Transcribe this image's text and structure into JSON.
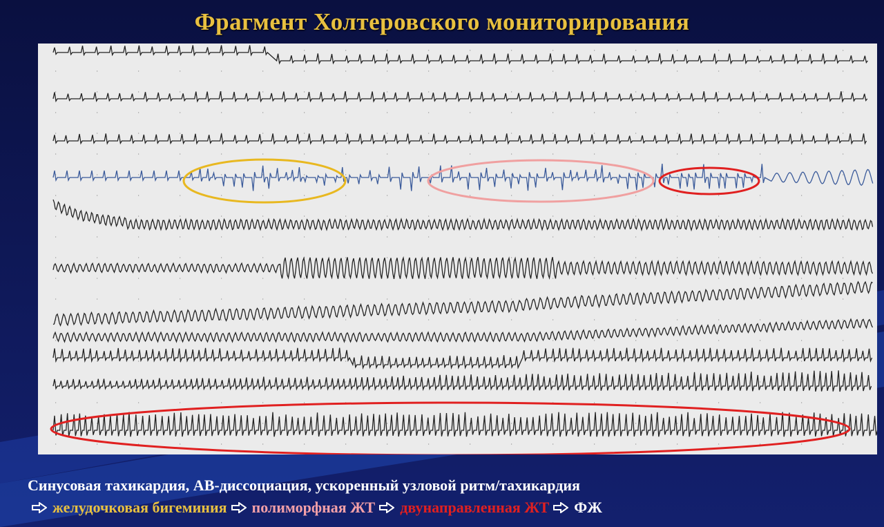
{
  "title": "Фрагмент Холтеровского мониторирования",
  "caption": {
    "line1": "Синусовая тахикардия, АВ-диссоциация, ускоренный узловой ритм/тахикардия",
    "sequence": [
      "желудочковая бигеминия",
      "полиморфная ЖТ",
      "двунаправленная ЖТ",
      "ФЖ"
    ]
  }
}
